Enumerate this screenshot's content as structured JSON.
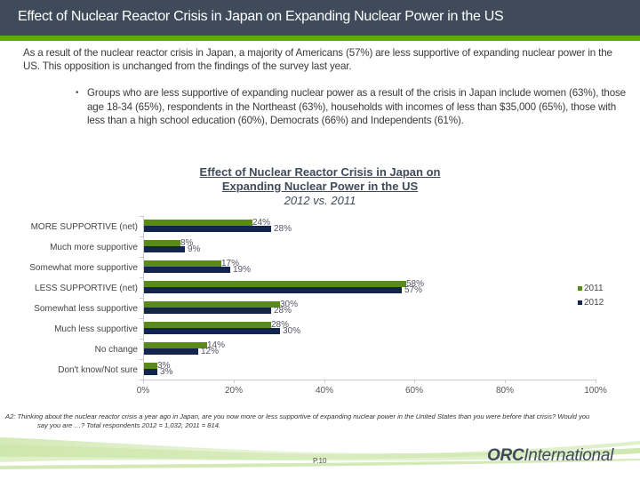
{
  "header": {
    "title": "Effect of Nuclear Reactor Crisis in Japan on Expanding Nuclear Power in the US"
  },
  "intro": "As a result of the nuclear reactor crisis in Japan, a majority of Americans (57%) are less supportive of expanding nuclear power in the US.  This opposition is unchanged from the findings of the survey last year.",
  "bullet": {
    "symbol": "•",
    "text": "Groups who are less supportive of expanding nuclear power as a result of the crisis in Japan include women (63%), those age 18-34 (65%), respondents in the Northeast (63%), households with incomes of less than $35,000 (65%), those with less than a high school education (60%), Democrats (66%) and Independents (61%)."
  },
  "chart": {
    "title_line1": "Effect of Nuclear Reactor Crisis in Japan on",
    "title_line2": "Expanding Nuclear Power in the US",
    "subtitle": "2012 vs. 2011",
    "categories": [
      {
        "label": "MORE SUPPORTIVE (net)",
        "v2011": "24%",
        "v2012": "28%"
      },
      {
        "label": "Much more supportive",
        "v2011": "8%",
        "v2012": "9%"
      },
      {
        "label": "Somewhat more supportive",
        "v2011": "17%",
        "v2012": "19%"
      },
      {
        "label": "LESS SUPPORTIVE (net)",
        "v2011": "58%",
        "v2012": "57%"
      },
      {
        "label": "Somewhat less supportive",
        "v2011": "30%",
        "v2012": "28%"
      },
      {
        "label": "Much less supportive",
        "v2011": "28%",
        "v2012": "30%"
      },
      {
        "label": "No change",
        "v2011": "14%",
        "v2012": "12%"
      },
      {
        "label": "Don't know/Not sure",
        "v2011": "3%",
        "v2012": "3%"
      }
    ],
    "x_ticks": [
      "0%",
      "20%",
      "40%",
      "60%",
      "80%",
      "100%"
    ],
    "legend": [
      {
        "label": "2011",
        "color": "#5a8a1a"
      },
      {
        "label": "2012",
        "color": "#13244d"
      }
    ]
  },
  "chart_data": {
    "type": "bar",
    "orientation": "horizontal",
    "title": "Effect of Nuclear Reactor Crisis in Japan on Expanding Nuclear Power in the US",
    "subtitle": "2012 vs. 2011",
    "categories": [
      "MORE SUPPORTIVE (net)",
      "Much more supportive",
      "Somewhat more supportive",
      "LESS SUPPORTIVE (net)",
      "Somewhat less supportive",
      "Much less supportive",
      "No change",
      "Don't know/Not sure"
    ],
    "series": [
      {
        "name": "2011",
        "color": "#5a8a1a",
        "values": [
          24,
          8,
          17,
          58,
          30,
          28,
          14,
          3
        ]
      },
      {
        "name": "2012",
        "color": "#13244d",
        "values": [
          28,
          9,
          19,
          57,
          28,
          30,
          12,
          3
        ]
      }
    ],
    "xlabel": "",
    "ylabel": "",
    "xlim": [
      0,
      100
    ],
    "x_tick_labels": [
      "0%",
      "20%",
      "40%",
      "60%",
      "80%",
      "100%"
    ],
    "grid": false,
    "legend_position": "right",
    "data_labels": true
  },
  "footnote": {
    "line1": "A2:  Thinking about the nuclear reactor crisis a year ago in Japan, are you now more or less supportive of expanding nuclear power in the United States than you were before that crisis?  Would you",
    "line2": "say you are …?  Total respondents 2012 = 1,032, 2011 = 814."
  },
  "footer": {
    "page": "P.10",
    "logo_bold": "ORC",
    "logo_rest": "International"
  }
}
